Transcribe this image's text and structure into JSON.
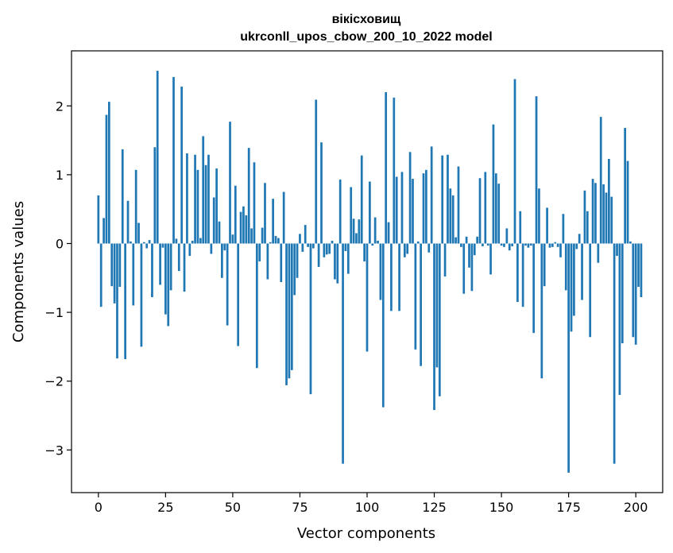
{
  "chart_data": {
    "type": "bar",
    "title_line1": "вікісховищ",
    "title_line2": "ukrconll_upos_cbow_200_10_2022 model",
    "xlabel": "Vector components",
    "ylabel": "Components values",
    "xlim": [
      -10,
      210
    ],
    "ylim": [
      -3.62,
      2.8
    ],
    "xticks": [
      0,
      25,
      50,
      75,
      100,
      125,
      150,
      175,
      200
    ],
    "yticks": [
      -3,
      -2,
      -1,
      0,
      1,
      2
    ],
    "bar_color": "#1f77b4",
    "grid": false,
    "values": [
      0.7,
      -0.92,
      0.37,
      1.87,
      2.06,
      -0.62,
      -0.87,
      -1.67,
      -0.63,
      1.37,
      -1.68,
      0.62,
      0.03,
      -0.9,
      1.07,
      0.3,
      -1.5,
      0.02,
      -0.07,
      0.05,
      -0.78,
      1.4,
      2.51,
      -0.6,
      -0.06,
      -1.03,
      -1.2,
      -0.68,
      2.42,
      0.07,
      -0.4,
      2.28,
      -0.7,
      1.31,
      -0.18,
      0.04,
      1.29,
      1.07,
      0.08,
      1.56,
      1.14,
      1.29,
      -0.15,
      0.67,
      1.09,
      0.32,
      -0.5,
      -0.1,
      -1.19,
      1.77,
      0.13,
      0.84,
      -1.49,
      0.46,
      0.54,
      0.41,
      1.39,
      0.22,
      1.18,
      -1.81,
      -0.26,
      0.23,
      0.88,
      -0.52,
      0.02,
      0.65,
      0.11,
      0.08,
      -0.56,
      0.75,
      -2.06,
      -1.96,
      -1.84,
      -0.75,
      -0.5,
      0.14,
      -0.12,
      0.27,
      -0.05,
      -2.19,
      -0.07,
      2.09,
      -0.34,
      1.47,
      -0.2,
      -0.16,
      -0.15,
      0.04,
      -0.52,
      -0.58,
      0.93,
      -3.2,
      -0.11,
      -0.44,
      0.82,
      0.36,
      0.15,
      0.35,
      1.28,
      -0.26,
      -1.57,
      0.9,
      -0.03,
      0.38,
      0.04,
      -0.82,
      -2.38,
      2.2,
      0.31,
      -0.98,
      2.12,
      0.97,
      -0.98,
      1.04,
      -0.2,
      -0.15,
      1.33,
      0.94,
      -1.54,
      0.03,
      -1.78,
      1.02,
      1.07,
      -0.13,
      1.41,
      -2.42,
      -1.8,
      -2.22,
      1.28,
      -0.48,
      1.29,
      0.8,
      0.7,
      0.09,
      1.12,
      -0.05,
      -0.73,
      0.1,
      -0.35,
      -0.69,
      -0.17,
      0.1,
      0.95,
      -0.04,
      1.04,
      -0.03,
      -0.45,
      1.73,
      1.02,
      0.87,
      -0.03,
      -0.05,
      0.22,
      -0.1,
      -0.04,
      2.39,
      -0.85,
      0.47,
      -0.92,
      -0.03,
      -0.06,
      -0.03,
      -1.3,
      2.14,
      0.8,
      -1.96,
      -0.62,
      0.52,
      -0.06,
      -0.05,
      0.02,
      -0.05,
      -0.2,
      0.43,
      -0.68,
      -3.33,
      -1.28,
      -1.05,
      -0.08,
      0.14,
      -0.82,
      0.77,
      0.47,
      -1.36,
      0.94,
      0.88,
      -0.28,
      1.84,
      0.86,
      0.74,
      1.23,
      0.68,
      -3.2,
      -0.18,
      -2.2,
      -1.45,
      1.68,
      1.2,
      0.03,
      -1.36,
      -1.47,
      -0.63,
      -0.78
    ]
  }
}
